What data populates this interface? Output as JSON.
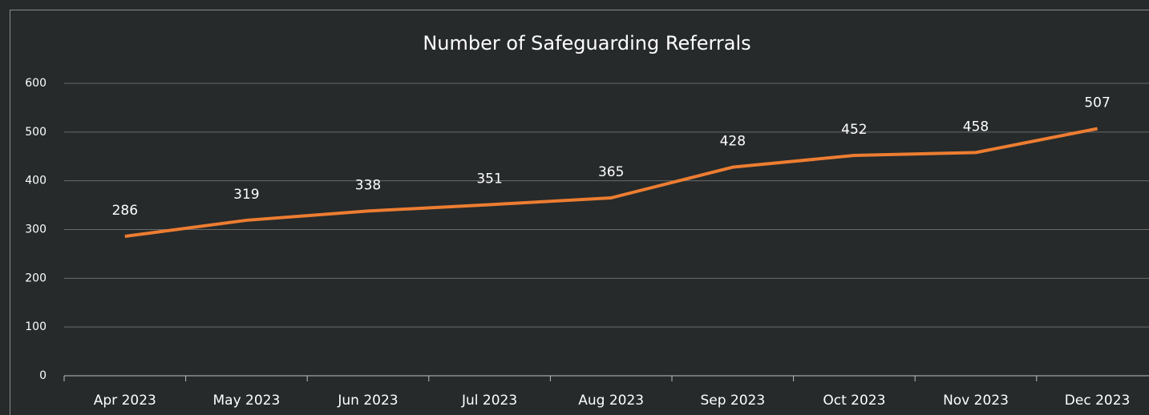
{
  "chart_data": {
    "type": "line",
    "title": "Number of  Safeguarding Referrals",
    "categories": [
      "Apr 2023",
      "May 2023",
      "Jun 2023",
      "Jul 2023",
      "Aug 2023",
      "Sep 2023",
      "Oct 2023",
      "Nov 2023",
      "Dec 2023"
    ],
    "values": [
      286,
      319,
      338,
      351,
      365,
      428,
      452,
      458,
      507
    ],
    "color": "#ed7d31",
    "ylim": [
      0,
      600
    ],
    "yticks": [
      0,
      100,
      200,
      300,
      400,
      500,
      600
    ],
    "grid": true
  }
}
